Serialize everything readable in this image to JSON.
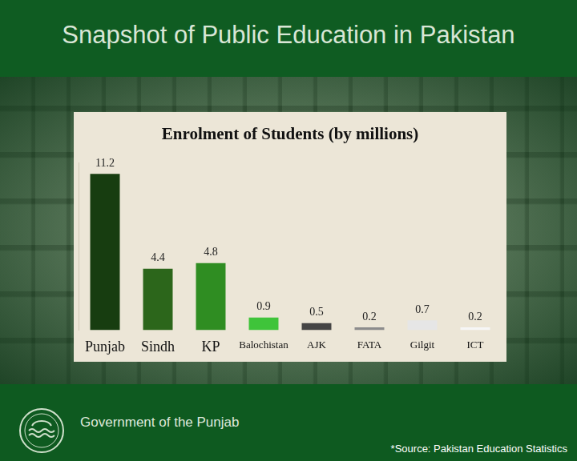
{
  "header": {
    "title": "Snapshot of Public Education in Pakistan"
  },
  "chart_data": {
    "type": "bar",
    "title": "Enrolment of Students (by millions)",
    "categories": [
      "Punjab",
      "Sindh",
      "KP",
      "Balochistan",
      "AJK",
      "FATA",
      "Gilgit",
      "ICT"
    ],
    "values": [
      11.2,
      4.4,
      4.8,
      0.9,
      0.5,
      0.2,
      0.7,
      0.2
    ],
    "colors": [
      "#173d10",
      "#2c661b",
      "#2f8d22",
      "#3fc43a",
      "#454545",
      "#8c8c8c",
      "#e6e6e6",
      "#f6f6f6"
    ],
    "ylim": [
      0,
      12
    ],
    "data_labels": true,
    "tick_labels": "x",
    "grid": false
  },
  "footer": {
    "organization": "Government of the Punjab",
    "source": "*Source: Pakistan Education Statistics"
  }
}
